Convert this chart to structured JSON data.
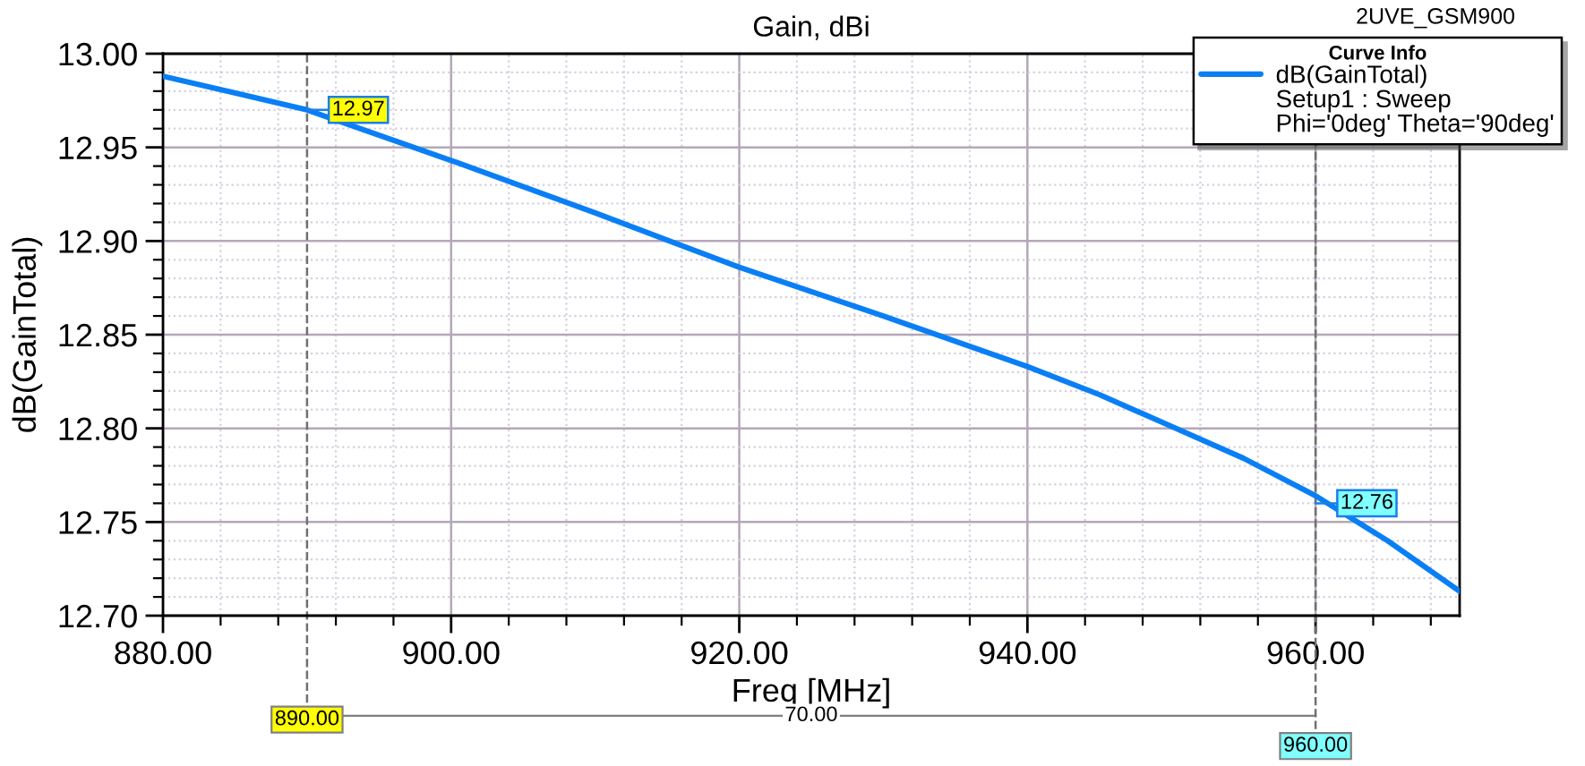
{
  "chart_data": {
    "type": "line",
    "title": "Gain, dBi",
    "xlabel": "Freq [MHz]",
    "ylabel": "dB(GainTotal)",
    "legend_title": "Curve Info",
    "series": [
      {
        "name": "dB(GainTotal)",
        "color": "#0a7ff5",
        "x": [
          880,
          890,
          900,
          910,
          920,
          930,
          940,
          945,
          950,
          955,
          960,
          965,
          970
        ],
        "values": [
          12.988,
          12.97,
          12.943,
          12.915,
          12.886,
          12.86,
          12.833,
          12.818,
          12.801,
          12.784,
          12.764,
          12.74,
          12.713
        ]
      }
    ],
    "xlim": [
      880,
      970
    ],
    "xticks": [
      {
        "value": 880,
        "label": "880.00"
      },
      {
        "value": 900,
        "label": "900.00"
      },
      {
        "value": 920,
        "label": "920.00"
      },
      {
        "value": 940,
        "label": "940.00"
      },
      {
        "value": 960,
        "label": "960.00"
      }
    ],
    "ylim": [
      12.7,
      13.0
    ],
    "yticks": [
      {
        "value": 12.7,
        "label": "12.70"
      },
      {
        "value": 12.75,
        "label": "12.75"
      },
      {
        "value": 12.8,
        "label": "12.80"
      },
      {
        "value": 12.85,
        "label": "12.85"
      },
      {
        "value": 12.9,
        "label": "12.90"
      },
      {
        "value": 12.95,
        "label": "12.95"
      },
      {
        "value": 13.0,
        "label": "13.00"
      }
    ],
    "ref_lines": [
      {
        "axis": "x",
        "value": 890,
        "label": "890.00",
        "line_style": "dashed"
      },
      {
        "axis": "x",
        "value": 960,
        "label": "960.00",
        "line_style": "dashed"
      }
    ],
    "annotations": [
      {
        "text": "12.97",
        "x": 890,
        "y": 12.97
      },
      {
        "text": "12.76",
        "x": 960,
        "y": 12.76
      },
      "70.00",
      "Setup1 : Sweep",
      "Phi='0deg' Theta='90deg'",
      "2UVE_GSM900"
    ],
    "grid": true,
    "legend": "top right",
    "line_style": "solid"
  }
}
